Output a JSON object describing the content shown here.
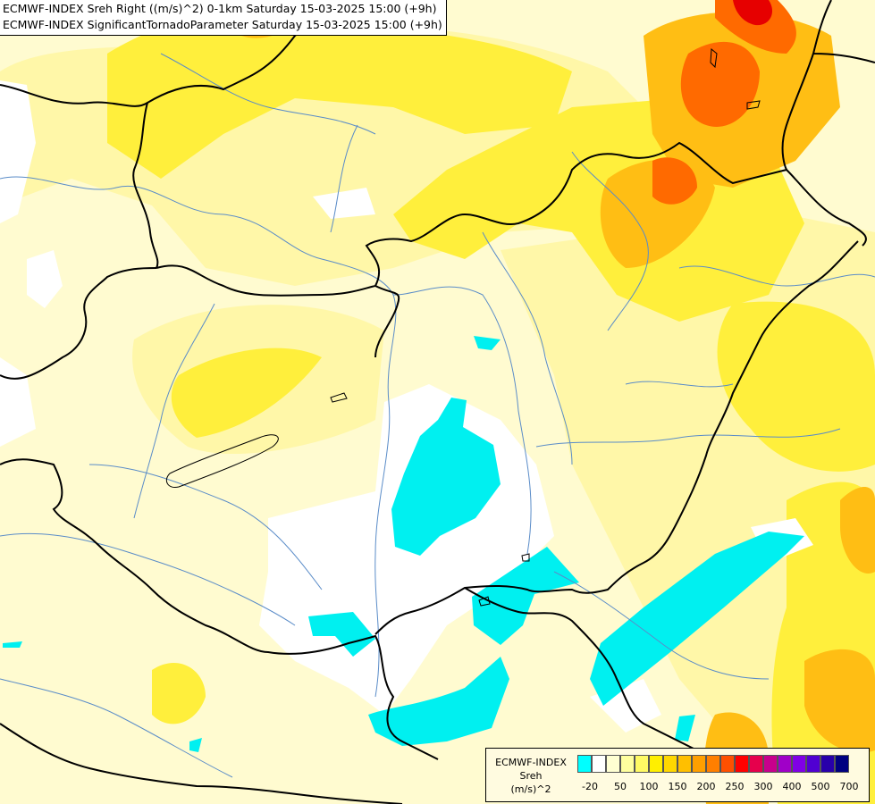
{
  "title": {
    "line1": "ECMWF-INDEX Sreh Right ((m/s)^2) 0-1km Saturday 15-03-2025 15:00 (+9h)",
    "line2": "ECMWF-INDEX SignificantTornadoParameter Saturday 15-03-2025 15:00 (+9h)"
  },
  "legend": {
    "line1": "ECMWF-INDEX",
    "line2": "Sreh",
    "line3": "(m/s)^2",
    "colors": [
      "#00ffff",
      "#ffffff",
      "#ffffd2",
      "#ffff9e",
      "#fffa64",
      "#ffef00",
      "#ffd700",
      "#ffbf00",
      "#ff9f00",
      "#ff7f00",
      "#ff5000",
      "#ff0000",
      "#e6004c",
      "#c8008c",
      "#a000c8",
      "#8000e6",
      "#5000d2",
      "#2800aa",
      "#000080"
    ],
    "ticks": [
      "-20",
      "50",
      "100",
      "150",
      "200",
      "250",
      "300",
      "400",
      "500",
      "700"
    ]
  },
  "map": {
    "background": "#fffbd0",
    "border_color": "#000000",
    "river_color": "#5a8cc8"
  }
}
